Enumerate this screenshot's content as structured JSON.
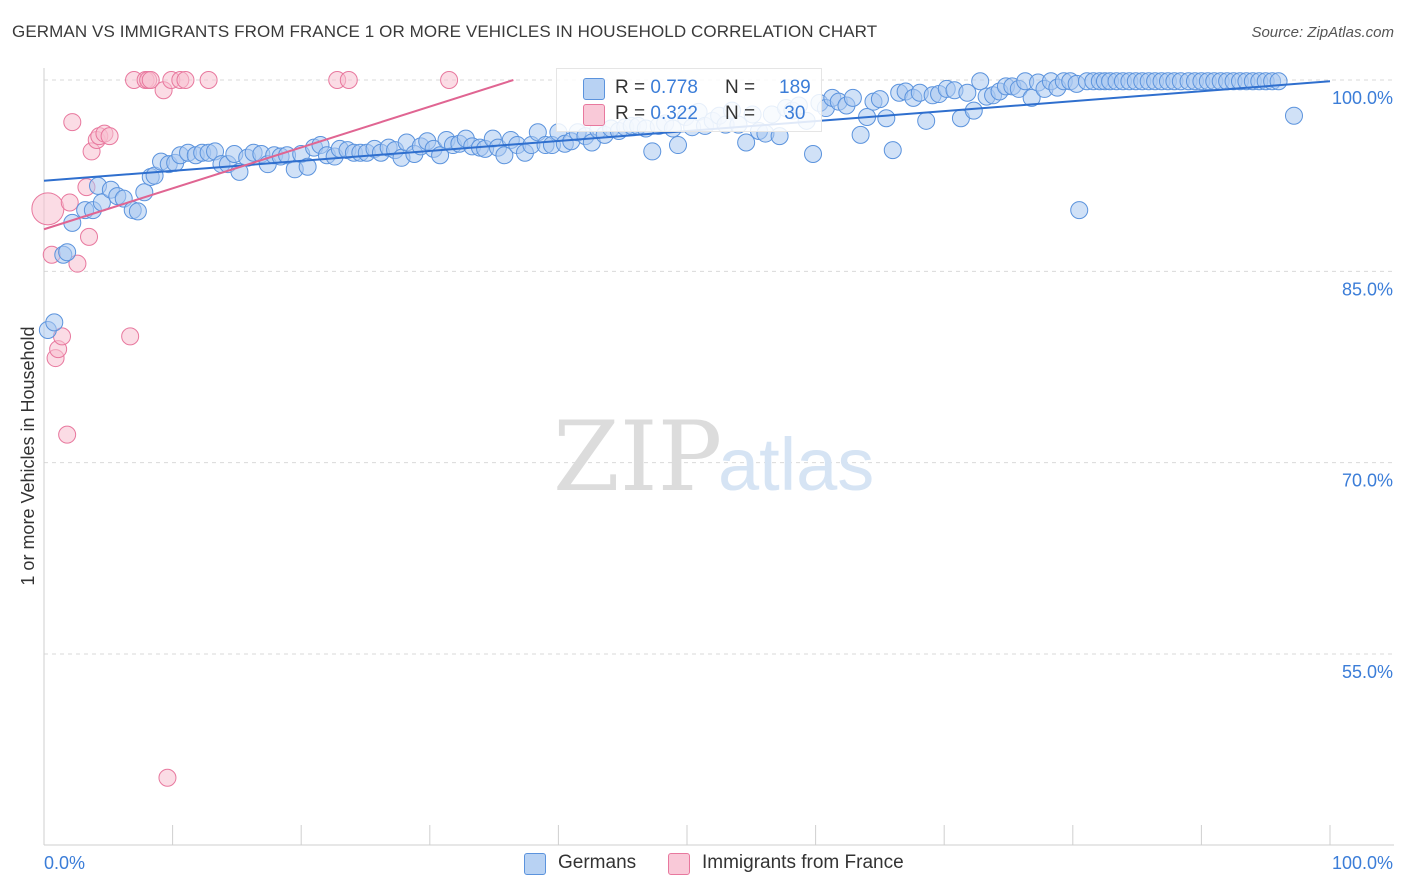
{
  "title": "GERMAN VS IMMIGRANTS FROM FRANCE 1 OR MORE VEHICLES IN HOUSEHOLD CORRELATION CHART",
  "source": "Source: ZipAtlas.com",
  "watermark": {
    "zip": "ZIP",
    "atlas": "atlas"
  },
  "colors": {
    "blue_fill": "#a9c8f0",
    "blue_stroke": "#5b93dd",
    "blue_line": "#2f6fce",
    "pink_fill": "#f7bfd0",
    "pink_stroke": "#e8789e",
    "pink_line": "#e06592",
    "tick_label": "#3b7dd8",
    "grid": "#d9d9d9"
  },
  "legend": {
    "series1": {
      "r_label": "R = ",
      "r_value": "0.778",
      "n_label": "N = ",
      "n_value": "189"
    },
    "series2": {
      "r_label": "R = ",
      "r_value": "0.322",
      "n_label": "N = ",
      "n_value": " 30"
    }
  },
  "bottom_legend": {
    "series1": "Germans",
    "series2": "Immigrants from France"
  },
  "chart_data": {
    "type": "scatter",
    "title": "GERMAN VS IMMIGRANTS FROM FRANCE 1 OR MORE VEHICLES IN HOUSEHOLD CORRELATION CHART",
    "xlabel": "",
    "ylabel": "1 or more Vehicles in Household",
    "xlim": [
      0,
      100
    ],
    "ylim": [
      40,
      101
    ],
    "x_tick_labels": [
      "0.0%",
      "100.0%"
    ],
    "y_ticks": [
      100,
      85,
      70,
      55
    ],
    "y_tick_labels": [
      "100.0%",
      "85.0%",
      "70.0%",
      "55.0%"
    ],
    "series": [
      {
        "name": "Germans",
        "trend": {
          "x": [
            0,
            100
          ],
          "y": [
            92.1,
            99.9
          ]
        },
        "points": [
          [
            0.3,
            80.4
          ],
          [
            0.8,
            81.0
          ],
          [
            1.5,
            86.3
          ],
          [
            1.8,
            86.5
          ],
          [
            2.2,
            88.8
          ],
          [
            3.2,
            89.8
          ],
          [
            3.8,
            89.8
          ],
          [
            4.2,
            91.7
          ],
          [
            4.5,
            90.4
          ],
          [
            5.2,
            91.4
          ],
          [
            5.7,
            90.9
          ],
          [
            6.2,
            90.7
          ],
          [
            6.9,
            89.8
          ],
          [
            7.3,
            89.7
          ],
          [
            7.8,
            91.2
          ],
          [
            8.3,
            92.4
          ],
          [
            8.6,
            92.5
          ],
          [
            9.1,
            93.6
          ],
          [
            9.7,
            93.4
          ],
          [
            10.2,
            93.5
          ],
          [
            10.6,
            94.1
          ],
          [
            11.2,
            94.3
          ],
          [
            11.8,
            94.1
          ],
          [
            12.3,
            94.3
          ],
          [
            12.8,
            94.3
          ],
          [
            13.3,
            94.4
          ],
          [
            13.8,
            93.4
          ],
          [
            14.3,
            93.4
          ],
          [
            14.8,
            94.2
          ],
          [
            15.2,
            92.8
          ],
          [
            15.8,
            93.9
          ],
          [
            16.3,
            94.3
          ],
          [
            16.9,
            94.2
          ],
          [
            17.4,
            93.4
          ],
          [
            17.9,
            94.1
          ],
          [
            18.4,
            94.0
          ],
          [
            18.9,
            94.1
          ],
          [
            19.5,
            93.0
          ],
          [
            20.0,
            94.2
          ],
          [
            20.5,
            93.2
          ],
          [
            21.0,
            94.7
          ],
          [
            21.5,
            94.9
          ],
          [
            22.0,
            94.1
          ],
          [
            22.6,
            94.0
          ],
          [
            23.0,
            94.6
          ],
          [
            23.6,
            94.5
          ],
          [
            24.1,
            94.3
          ],
          [
            24.6,
            94.3
          ],
          [
            25.1,
            94.3
          ],
          [
            25.7,
            94.6
          ],
          [
            26.2,
            94.3
          ],
          [
            26.8,
            94.7
          ],
          [
            27.3,
            94.5
          ],
          [
            27.8,
            93.9
          ],
          [
            28.2,
            95.1
          ],
          [
            28.8,
            94.2
          ],
          [
            29.3,
            94.8
          ],
          [
            29.8,
            95.2
          ],
          [
            30.3,
            94.6
          ],
          [
            30.8,
            94.1
          ],
          [
            31.3,
            95.3
          ],
          [
            31.8,
            94.9
          ],
          [
            32.3,
            95.0
          ],
          [
            32.8,
            95.4
          ],
          [
            33.3,
            94.8
          ],
          [
            33.9,
            94.7
          ],
          [
            34.3,
            94.6
          ],
          [
            34.9,
            95.4
          ],
          [
            35.3,
            94.7
          ],
          [
            35.8,
            94.1
          ],
          [
            36.3,
            95.3
          ],
          [
            36.8,
            94.9
          ],
          [
            37.4,
            94.3
          ],
          [
            37.9,
            94.9
          ],
          [
            38.4,
            95.9
          ],
          [
            39.0,
            94.9
          ],
          [
            39.5,
            94.9
          ],
          [
            40.0,
            95.9
          ],
          [
            40.5,
            95.0
          ],
          [
            41.0,
            95.2
          ],
          [
            41.5,
            95.9
          ],
          [
            42.1,
            95.6
          ],
          [
            42.6,
            95.1
          ],
          [
            43.1,
            96.1
          ],
          [
            43.6,
            95.7
          ],
          [
            44.1,
            96.2
          ],
          [
            44.7,
            96.0
          ],
          [
            45.2,
            96.3
          ],
          [
            45.7,
            96.4
          ],
          [
            46.2,
            96.4
          ],
          [
            46.8,
            96.2
          ],
          [
            47.3,
            94.4
          ],
          [
            47.8,
            96.4
          ],
          [
            48.3,
            96.6
          ],
          [
            48.9,
            96.2
          ],
          [
            49.3,
            94.9
          ],
          [
            49.9,
            97.1
          ],
          [
            50.4,
            96.3
          ],
          [
            50.9,
            97.5
          ],
          [
            51.4,
            96.4
          ],
          [
            52.0,
            96.8
          ],
          [
            52.5,
            97.2
          ],
          [
            53.0,
            96.5
          ],
          [
            53.5,
            97.6
          ],
          [
            54.0,
            96.5
          ],
          [
            54.6,
            95.1
          ],
          [
            55.1,
            97.3
          ],
          [
            55.6,
            96.0
          ],
          [
            56.1,
            95.8
          ],
          [
            56.6,
            97.3
          ],
          [
            57.2,
            95.6
          ],
          [
            57.7,
            97.8
          ],
          [
            58.2,
            97.6
          ],
          [
            58.7,
            98.0
          ],
          [
            59.3,
            96.8
          ],
          [
            59.8,
            94.2
          ],
          [
            60.3,
            98.2
          ],
          [
            60.8,
            97.8
          ],
          [
            61.3,
            98.6
          ],
          [
            61.8,
            98.3
          ],
          [
            62.4,
            98.0
          ],
          [
            62.9,
            98.6
          ],
          [
            63.5,
            95.7
          ],
          [
            64.0,
            97.1
          ],
          [
            64.5,
            98.3
          ],
          [
            65.0,
            98.5
          ],
          [
            65.5,
            97.0
          ],
          [
            66.0,
            94.5
          ],
          [
            66.5,
            99.0
          ],
          [
            67.0,
            99.1
          ],
          [
            67.6,
            98.6
          ],
          [
            68.1,
            99.0
          ],
          [
            68.6,
            96.8
          ],
          [
            69.1,
            98.8
          ],
          [
            69.6,
            98.9
          ],
          [
            70.2,
            99.3
          ],
          [
            70.8,
            99.2
          ],
          [
            71.3,
            97.0
          ],
          [
            71.8,
            99.0
          ],
          [
            72.3,
            97.6
          ],
          [
            72.8,
            99.9
          ],
          [
            73.3,
            98.7
          ],
          [
            73.8,
            98.8
          ],
          [
            74.3,
            99.1
          ],
          [
            74.8,
            99.5
          ],
          [
            75.3,
            99.5
          ],
          [
            75.8,
            99.3
          ],
          [
            76.3,
            99.9
          ],
          [
            76.8,
            98.6
          ],
          [
            77.3,
            99.8
          ],
          [
            77.8,
            99.3
          ],
          [
            78.3,
            99.9
          ],
          [
            78.8,
            99.4
          ],
          [
            79.3,
            99.9
          ],
          [
            79.8,
            99.9
          ],
          [
            80.3,
            99.7
          ],
          [
            80.5,
            89.8
          ],
          [
            81.1,
            99.9
          ],
          [
            81.6,
            99.9
          ],
          [
            82.1,
            99.9
          ],
          [
            82.5,
            99.9
          ],
          [
            82.9,
            99.9
          ],
          [
            83.4,
            99.9
          ],
          [
            83.9,
            99.9
          ],
          [
            84.4,
            99.9
          ],
          [
            84.9,
            99.9
          ],
          [
            85.4,
            99.9
          ],
          [
            85.9,
            99.9
          ],
          [
            86.4,
            99.9
          ],
          [
            86.9,
            99.9
          ],
          [
            87.4,
            99.9
          ],
          [
            87.9,
            99.9
          ],
          [
            88.4,
            99.9
          ],
          [
            89.0,
            99.9
          ],
          [
            89.5,
            99.9
          ],
          [
            90.0,
            99.9
          ],
          [
            90.5,
            99.9
          ],
          [
            91.0,
            99.9
          ],
          [
            91.5,
            99.9
          ],
          [
            92.0,
            99.9
          ],
          [
            92.5,
            99.9
          ],
          [
            93.0,
            99.9
          ],
          [
            93.5,
            99.9
          ],
          [
            94.0,
            99.9
          ],
          [
            94.5,
            99.9
          ],
          [
            95.0,
            99.9
          ],
          [
            95.5,
            99.9
          ],
          [
            96.0,
            99.9
          ],
          [
            97.2,
            97.2
          ]
        ]
      },
      {
        "name": "Immigrants from France",
        "trend": {
          "x": [
            0,
            36.5
          ],
          "y": [
            88.3,
            100.0
          ]
        },
        "points": [
          [
            0.3,
            89.9
          ],
          [
            0.6,
            86.3
          ],
          [
            0.9,
            78.2
          ],
          [
            1.1,
            78.9
          ],
          [
            1.4,
            79.9
          ],
          [
            1.8,
            72.2
          ],
          [
            2.0,
            90.4
          ],
          [
            2.2,
            96.7
          ],
          [
            2.6,
            85.6
          ],
          [
            3.3,
            91.6
          ],
          [
            3.5,
            87.7
          ],
          [
            3.7,
            94.4
          ],
          [
            4.1,
            95.3
          ],
          [
            4.3,
            95.6
          ],
          [
            4.7,
            95.8
          ],
          [
            5.1,
            95.6
          ],
          [
            6.7,
            79.9
          ],
          [
            7.0,
            100.0
          ],
          [
            7.9,
            100.0
          ],
          [
            8.1,
            100.0
          ],
          [
            8.3,
            100.0
          ],
          [
            9.3,
            99.2
          ],
          [
            9.6,
            45.3
          ],
          [
            9.9,
            100.0
          ],
          [
            10.6,
            100.0
          ],
          [
            11.0,
            100.0
          ],
          [
            12.8,
            100.0
          ],
          [
            22.8,
            100.0
          ],
          [
            23.7,
            100.0
          ],
          [
            31.5,
            100.0
          ]
        ]
      }
    ]
  }
}
